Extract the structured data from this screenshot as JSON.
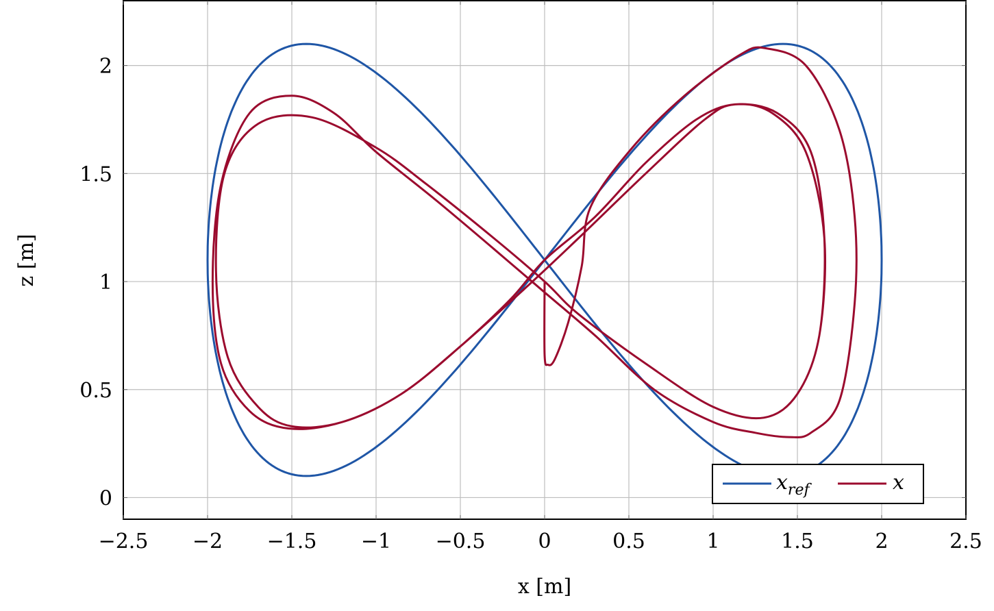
{
  "chart_data": {
    "type": "line",
    "title": "",
    "xlabel": "x [m]",
    "ylabel": "z [m]",
    "xlim": [
      -2.5,
      2.5
    ],
    "ylim": [
      -0.1,
      2.3
    ],
    "grid": true,
    "x_ticks": [
      "−2.5",
      "−2",
      "−1.5",
      "−1",
      "−0.5",
      "0",
      "0.5",
      "1",
      "1.5",
      "2",
      "2.5"
    ],
    "x_tick_values": [
      -2.5,
      -2,
      -1.5,
      -1,
      -0.5,
      0,
      0.5,
      1,
      1.5,
      2,
      2.5
    ],
    "y_ticks": [
      "0",
      "0.5",
      "1",
      "1.5",
      "2"
    ],
    "y_tick_values": [
      0,
      0.5,
      1,
      1.5,
      2
    ],
    "legend": {
      "position": "lower right",
      "entries": [
        {
          "label": "x",
          "subscript": "ref",
          "color": "#1f56a6"
        },
        {
          "label": "x",
          "subscript": "",
          "color": "#9b0b2e"
        }
      ]
    },
    "series": [
      {
        "name": "x_ref",
        "color": "#1f56a6",
        "description": "figure-eight reference: x = 2 sin(t), z = 1.1 + sin(2t)",
        "x": [
          0,
          0.39,
          0.77,
          1.11,
          1.41,
          1.66,
          1.85,
          1.96,
          2.0,
          1.96,
          1.85,
          1.66,
          1.41,
          1.11,
          0.77,
          0.39,
          0,
          -0.39,
          -0.77,
          -1.11,
          -1.41,
          -1.66,
          -1.85,
          -1.96,
          -2.0,
          -1.96,
          -1.85,
          -1.66,
          -1.41,
          -1.11,
          -0.77,
          -0.39,
          0
        ],
        "z": [
          1.1,
          1.48,
          1.81,
          2.02,
          2.1,
          2.02,
          1.81,
          1.48,
          1.1,
          0.72,
          0.39,
          0.18,
          0.1,
          0.18,
          0.39,
          0.72,
          1.1,
          1.48,
          1.81,
          2.02,
          2.1,
          2.02,
          1.81,
          1.48,
          1.1,
          0.72,
          0.39,
          0.18,
          0.1,
          0.18,
          0.39,
          0.72,
          1.1
        ]
      },
      {
        "name": "x",
        "color": "#9b0b2e",
        "description": "actual trajectory starting at (0,1), converging toward smaller inner figure-eight",
        "x": [
          0,
          0,
          0.02,
          0.06,
          0.14,
          0.22,
          0.27,
          0.51,
          0.83,
          1.16,
          1.31,
          1.55,
          1.75,
          1.84,
          1.84,
          1.75,
          1.58,
          1.45,
          1.25,
          1.0,
          0.65,
          0.3,
          0,
          -0.3,
          -0.65,
          -1.0,
          -1.25,
          -1.5,
          -1.75,
          -1.92,
          -1.97,
          -1.92,
          -1.75,
          -1.52,
          -1.2,
          -0.85,
          -0.5,
          -0.2,
          0,
          0.3,
          0.6,
          0.9,
          1.13,
          1.35,
          1.55,
          1.66,
          1.63,
          1.5,
          1.3,
          1.0,
          0.6,
          0.2,
          0,
          -0.3,
          -0.7,
          -1.0,
          -1.38,
          -1.7,
          -1.9,
          -1.95,
          -1.88,
          -1.7,
          -1.5,
          -1.2,
          -0.85,
          -0.5,
          -0.1,
          0.2,
          0.6,
          0.95,
          1.13,
          1.38,
          1.58,
          1.66,
          1.63,
          1.5,
          1.3,
          1.0,
          0.6,
          0.2,
          0,
          -0.3,
          -0.7,
          -1.0,
          -1.38,
          -1.7,
          -1.9,
          -1.95,
          -1.88,
          -1.7,
          -1.5,
          -1.2,
          -0.85,
          -0.5,
          -0.1
        ],
        "z": [
          1.0,
          0.66,
          0.615,
          0.64,
          0.81,
          1.07,
          1.34,
          1.61,
          1.86,
          2.05,
          2.08,
          2.0,
          1.7,
          1.3,
          0.9,
          0.45,
          0.3,
          0.28,
          0.3,
          0.35,
          0.5,
          0.75,
          0.95,
          1.15,
          1.38,
          1.6,
          1.78,
          1.86,
          1.78,
          1.45,
          1.0,
          0.62,
          0.4,
          0.32,
          0.35,
          0.48,
          0.7,
          0.92,
          1.1,
          1.3,
          1.55,
          1.75,
          1.82,
          1.78,
          1.6,
          1.2,
          0.75,
          0.48,
          0.37,
          0.42,
          0.62,
          0.85,
          1.0,
          1.2,
          1.45,
          1.62,
          1.76,
          1.73,
          1.5,
          1.05,
          0.65,
          0.42,
          0.33,
          0.35,
          0.48,
          0.7,
          0.98,
          1.2,
          1.5,
          1.75,
          1.82,
          1.78,
          1.6,
          1.2,
          0.75,
          0.48,
          0.37,
          0.42,
          0.62,
          0.85,
          1.0,
          1.2,
          1.45,
          1.62,
          1.76,
          1.73,
          1.5,
          1.05,
          0.65,
          0.42,
          0.33,
          0.35,
          0.48,
          0.7,
          0.98
        ]
      }
    ]
  },
  "axes": {
    "xlabel": "x [m]",
    "ylabel": "z [m]"
  },
  "legend": {
    "ref_label": "x",
    "ref_subscript": "ref",
    "actual_label": "x"
  },
  "colors": {
    "reference": "#1f56a6",
    "actual": "#9b0b2e",
    "grid": "#bdbdbd",
    "frame": "#000000"
  }
}
